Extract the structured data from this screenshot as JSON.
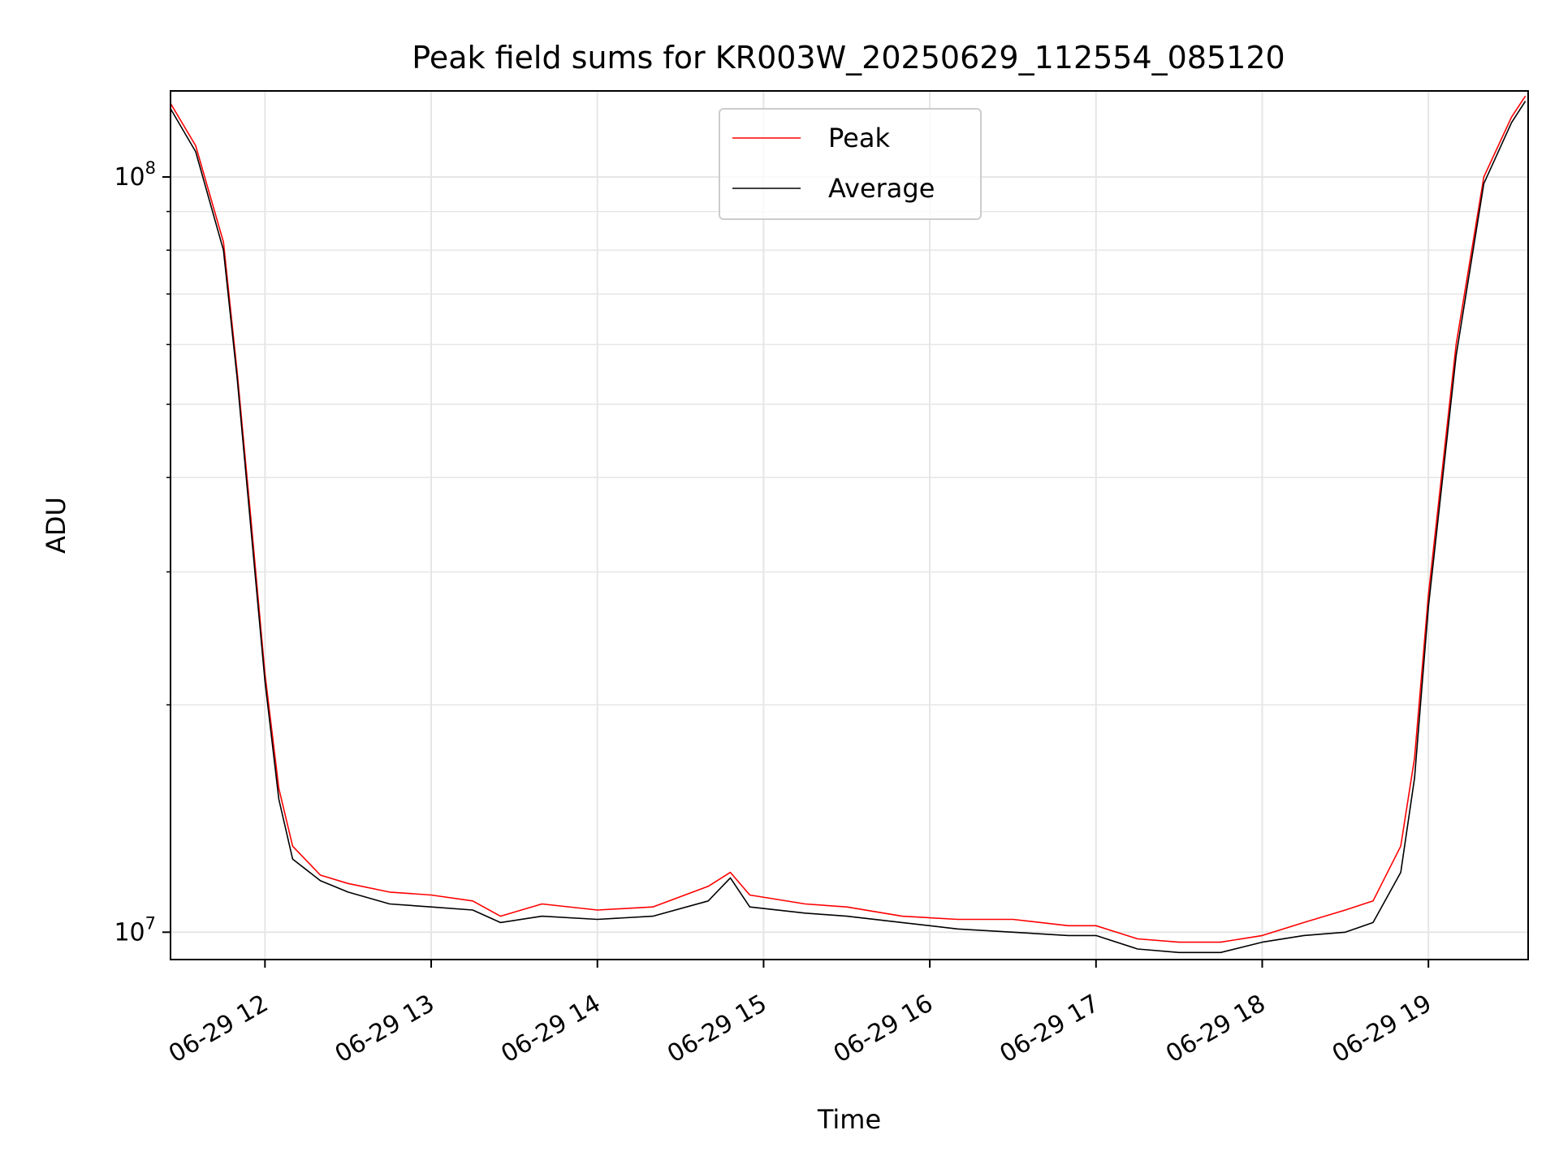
{
  "chart_data": {
    "type": "line",
    "title": "Peak field sums for KR003W_20250629_112554_085120",
    "xlabel": "Time",
    "ylabel": "ADU",
    "yscale": "log",
    "grid": true,
    "legend_position": "top-center",
    "xlim": [
      "2025-06-29 11:25:54",
      "2025-06-29 19:36:00"
    ],
    "ylim": [
      9200000,
      130000000
    ],
    "x_tick_labels": [
      "06-29 12",
      "06-29 13",
      "06-29 14",
      "06-29 15",
      "06-29 16",
      "06-29 17",
      "06-29 18",
      "06-29 19"
    ],
    "y_tick_labels": [
      {
        "value": 10000000,
        "base": "10",
        "exp": "7"
      },
      {
        "value": 100000000,
        "base": "10",
        "exp": "8"
      }
    ],
    "series": [
      {
        "name": "Peak",
        "color": "#ff0000",
        "x": [
          "2025-06-29 11:26",
          "2025-06-29 11:35",
          "2025-06-29 11:45",
          "2025-06-29 11:50",
          "2025-06-29 11:55",
          "2025-06-29 12:00",
          "2025-06-29 12:05",
          "2025-06-29 12:10",
          "2025-06-29 12:20",
          "2025-06-29 12:30",
          "2025-06-29 12:45",
          "2025-06-29 13:00",
          "2025-06-29 13:15",
          "2025-06-29 13:25",
          "2025-06-29 13:40",
          "2025-06-29 14:00",
          "2025-06-29 14:20",
          "2025-06-29 14:40",
          "2025-06-29 14:48",
          "2025-06-29 14:55",
          "2025-06-29 15:15",
          "2025-06-29 15:30",
          "2025-06-29 15:50",
          "2025-06-29 16:10",
          "2025-06-29 16:30",
          "2025-06-29 16:50",
          "2025-06-29 17:00",
          "2025-06-29 17:15",
          "2025-06-29 17:30",
          "2025-06-29 17:45",
          "2025-06-29 18:00",
          "2025-06-29 18:15",
          "2025-06-29 18:30",
          "2025-06-29 18:40",
          "2025-06-29 18:50",
          "2025-06-29 18:55",
          "2025-06-29 19:00",
          "2025-06-29 19:10",
          "2025-06-29 19:20",
          "2025-06-29 19:30",
          "2025-06-29 19:35"
        ],
        "y": [
          125000000,
          110000000,
          82000000,
          55000000,
          35000000,
          22000000,
          15500000,
          13000000,
          11900000,
          11600000,
          11300000,
          11200000,
          11000000,
          10500000,
          10900000,
          10700000,
          10800000,
          11500000,
          12000000,
          11200000,
          10900000,
          10800000,
          10500000,
          10400000,
          10400000,
          10200000,
          10200000,
          9800000,
          9700000,
          9700000,
          9900000,
          10300000,
          10700000,
          11000000,
          13000000,
          17000000,
          28000000,
          60000000,
          100000000,
          120000000,
          128000000
        ]
      },
      {
        "name": "Average",
        "color": "#000000",
        "x": [
          "2025-06-29 11:26",
          "2025-06-29 11:35",
          "2025-06-29 11:45",
          "2025-06-29 11:50",
          "2025-06-29 11:55",
          "2025-06-29 12:00",
          "2025-06-29 12:05",
          "2025-06-29 12:10",
          "2025-06-29 12:20",
          "2025-06-29 12:30",
          "2025-06-29 12:45",
          "2025-06-29 13:00",
          "2025-06-29 13:15",
          "2025-06-29 13:25",
          "2025-06-29 13:40",
          "2025-06-29 14:00",
          "2025-06-29 14:20",
          "2025-06-29 14:40",
          "2025-06-29 14:48",
          "2025-06-29 14:55",
          "2025-06-29 15:15",
          "2025-06-29 15:30",
          "2025-06-29 15:50",
          "2025-06-29 16:10",
          "2025-06-29 16:30",
          "2025-06-29 16:50",
          "2025-06-29 17:00",
          "2025-06-29 17:15",
          "2025-06-29 17:30",
          "2025-06-29 17:45",
          "2025-06-29 18:00",
          "2025-06-29 18:15",
          "2025-06-29 18:30",
          "2025-06-29 18:40",
          "2025-06-29 18:50",
          "2025-06-29 18:55",
          "2025-06-29 19:00",
          "2025-06-29 19:10",
          "2025-06-29 19:20",
          "2025-06-29 19:30",
          "2025-06-29 19:35"
        ],
        "y": [
          123000000,
          108000000,
          80000000,
          54000000,
          34000000,
          21500000,
          15000000,
          12500000,
          11700000,
          11300000,
          10900000,
          10800000,
          10700000,
          10300000,
          10500000,
          10400000,
          10500000,
          11000000,
          11800000,
          10800000,
          10600000,
          10500000,
          10300000,
          10100000,
          10000000,
          9900000,
          9900000,
          9500000,
          9400000,
          9400000,
          9700000,
          9900000,
          10000000,
          10300000,
          12000000,
          16000000,
          27000000,
          58000000,
          98000000,
          118000000,
          126000000
        ]
      }
    ]
  }
}
